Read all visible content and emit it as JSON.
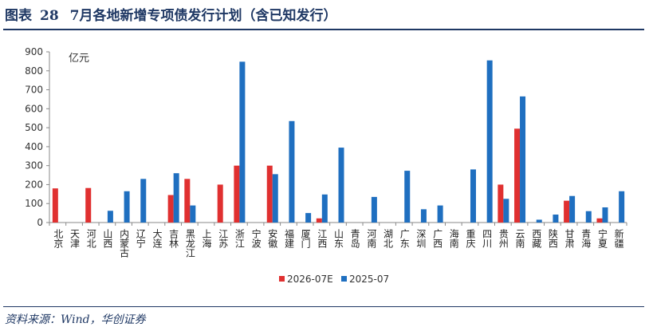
{
  "header": {
    "label": "图表",
    "number": "28",
    "title": "7月各地新增专项债发行计划（含已知发行）"
  },
  "footer": {
    "source": "资料来源：Wind，华创证券"
  },
  "chart_data": {
    "type": "bar",
    "unit": "亿元",
    "ylim": [
      0,
      900
    ],
    "yticks": [
      0,
      100,
      200,
      300,
      400,
      500,
      600,
      700,
      800,
      900
    ],
    "grid": false,
    "legend_position": "bottom-center",
    "categories": [
      "北京",
      "天津",
      "河北",
      "山西",
      "内蒙古",
      "辽宁",
      "大连",
      "吉林",
      "黑龙江",
      "上海",
      "江苏",
      "浙江",
      "宁波",
      "安徽",
      "福建",
      "厦门",
      "江西",
      "山东",
      "青岛",
      "河南",
      "湖北",
      "广东",
      "深圳",
      "广西",
      "海南",
      "重庆",
      "四川",
      "贵州",
      "云南",
      "西藏",
      "陕西",
      "甘肃",
      "青海",
      "宁夏",
      "新疆"
    ],
    "series": [
      {
        "name": "2026-07E",
        "color": "#e03030",
        "values": [
          180,
          0,
          182,
          0,
          0,
          0,
          0,
          145,
          230,
          0,
          200,
          300,
          0,
          300,
          0,
          0,
          22,
          0,
          0,
          0,
          0,
          0,
          0,
          0,
          0,
          0,
          0,
          200,
          495,
          0,
          0,
          115,
          0,
          22,
          0
        ]
      },
      {
        "name": "2025-07",
        "color": "#1f6fc0",
        "values": [
          0,
          0,
          0,
          62,
          165,
          230,
          0,
          260,
          90,
          0,
          0,
          848,
          0,
          255,
          535,
          50,
          148,
          395,
          0,
          135,
          0,
          273,
          70,
          90,
          0,
          280,
          855,
          125,
          665,
          15,
          42,
          140,
          60,
          80,
          165
        ]
      }
    ]
  }
}
